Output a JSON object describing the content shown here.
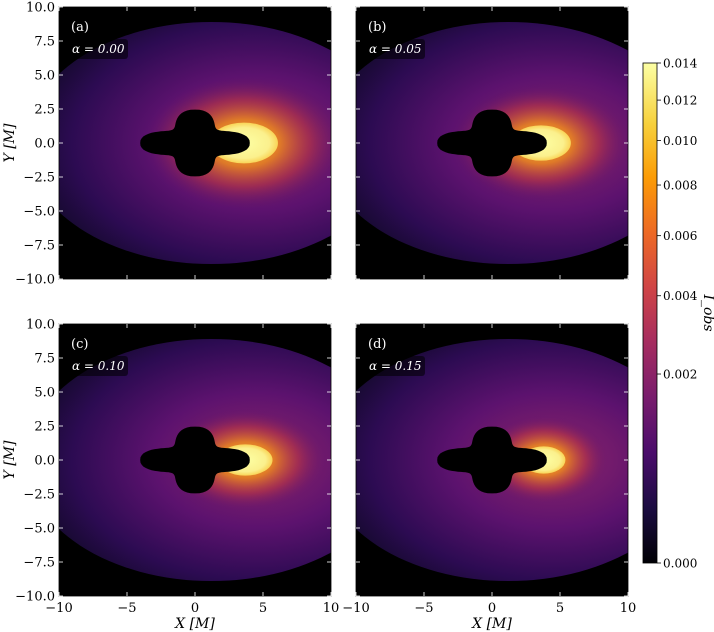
{
  "chart_data": {
    "type": "heatmap",
    "colormap": "inferno",
    "panels": [
      {
        "label": "(a)",
        "alpha_text": "α = 0.00",
        "alpha": 0.0,
        "spot_xcenter": 3.6,
        "spot_xradius": 2.5,
        "spot_yradius": 1.5
      },
      {
        "label": "(b)",
        "alpha_text": "α = 0.05",
        "alpha": 0.05,
        "spot_xcenter": 3.6,
        "spot_xradius": 2.2,
        "spot_yradius": 1.3
      },
      {
        "label": "(c)",
        "alpha_text": "α = 0.10",
        "alpha": 0.1,
        "spot_xcenter": 3.7,
        "spot_xradius": 2.0,
        "spot_yradius": 1.15
      },
      {
        "label": "(d)",
        "alpha_text": "α = 0.15",
        "alpha": 0.15,
        "spot_xcenter": 3.8,
        "spot_xradius": 1.6,
        "spot_yradius": 1.0
      }
    ],
    "xlabel": "X [M]",
    "ylabel": "Y [M]",
    "xlim": [
      -10,
      10
    ],
    "ylim": [
      -10,
      10
    ],
    "xticks": [
      "−10",
      "−5",
      "0",
      "5",
      "10"
    ],
    "yticks": [
      "10.0",
      "7.5",
      "5.0",
      "2.5",
      "0.0",
      "−2.5",
      "−5.0",
      "−7.5",
      "−10.0"
    ],
    "colorbar": {
      "label": "I_obs",
      "range": [
        0.0,
        0.014
      ],
      "ticks": [
        "0.014",
        "0.012",
        "0.010",
        "0.008",
        "0.006",
        "0.004",
        "0.002",
        "0.000"
      ],
      "tick_values": [
        0.014,
        0.012,
        0.01,
        0.008,
        0.006,
        0.004,
        0.002,
        0.0
      ],
      "colors": [
        "#000004",
        "#1b0c41",
        "#4a0c6b",
        "#781c6d",
        "#a52c60",
        "#cf4446",
        "#ed6925",
        "#fb9b06",
        "#f7d13d",
        "#fcffa4"
      ]
    }
  }
}
